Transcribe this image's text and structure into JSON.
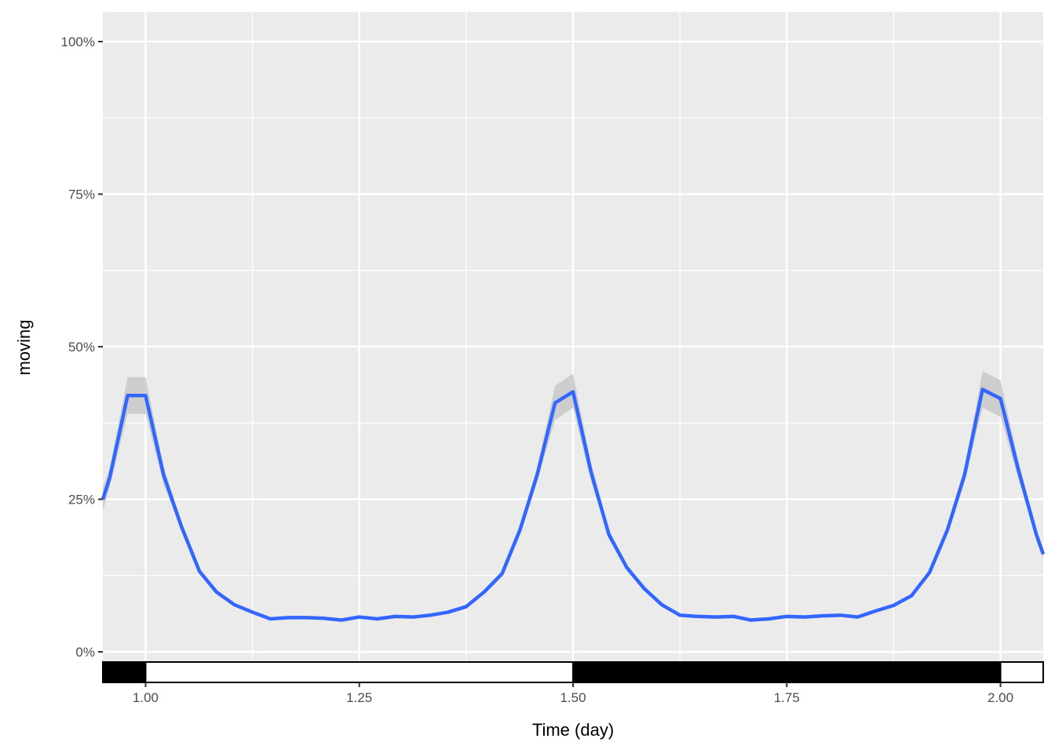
{
  "chart_data": {
    "type": "line",
    "title": "",
    "xlabel": "Time (day)",
    "ylabel": "moving",
    "xlim": [
      0.95,
      2.05
    ],
    "ylim": [
      0,
      1.05
    ],
    "x_ticks": [
      1.0,
      1.25,
      1.5,
      1.75,
      2.0
    ],
    "x_tick_labels": [
      "1.00",
      "1.25",
      "1.50",
      "1.75",
      "2.00"
    ],
    "y_ticks": [
      0,
      0.25,
      0.5,
      0.75,
      1.0
    ],
    "y_tick_labels": [
      "0%",
      "25%",
      "50%",
      "75%",
      "100%"
    ],
    "grid": true,
    "panel_background": "#ebebeb",
    "line_color": "#3366ff",
    "ribbon_color": "#c8c8c8",
    "series": [
      {
        "x": [
          0.95,
          0.958,
          0.979,
          1.0,
          1.021,
          1.042,
          1.063,
          1.083,
          1.104,
          1.125,
          1.146,
          1.167,
          1.188,
          1.208,
          1.229,
          1.25,
          1.271,
          1.292,
          1.313,
          1.333,
          1.354,
          1.375,
          1.396,
          1.417,
          1.438,
          1.458,
          1.479,
          1.5,
          1.521,
          1.542,
          1.563,
          1.583,
          1.604,
          1.625,
          1.646,
          1.667,
          1.688,
          1.708,
          1.729,
          1.75,
          1.771,
          1.792,
          1.813,
          1.833,
          1.854,
          1.875,
          1.896,
          1.917,
          1.938,
          1.958,
          1.979,
          2.0,
          2.021,
          2.042,
          2.05
        ],
        "y": [
          0.25,
          0.285,
          0.42,
          0.42,
          0.29,
          0.205,
          0.132,
          0.098,
          0.077,
          0.065,
          0.054,
          0.056,
          0.056,
          0.055,
          0.052,
          0.057,
          0.054,
          0.058,
          0.057,
          0.06,
          0.065,
          0.074,
          0.098,
          0.128,
          0.2,
          0.29,
          0.408,
          0.426,
          0.295,
          0.192,
          0.138,
          0.104,
          0.077,
          0.06,
          0.058,
          0.057,
          0.058,
          0.052,
          0.054,
          0.058,
          0.057,
          0.059,
          0.06,
          0.057,
          0.067,
          0.076,
          0.092,
          0.13,
          0.2,
          0.29,
          0.43,
          0.415,
          0.298,
          0.192,
          0.16
        ],
        "lower": [
          0.23,
          0.27,
          0.39,
          0.39,
          0.275,
          0.198,
          0.128,
          0.095,
          0.075,
          0.063,
          0.052,
          0.054,
          0.054,
          0.053,
          0.05,
          0.055,
          0.052,
          0.056,
          0.055,
          0.058,
          0.063,
          0.072,
          0.095,
          0.124,
          0.193,
          0.278,
          0.38,
          0.4,
          0.28,
          0.185,
          0.133,
          0.1,
          0.075,
          0.058,
          0.056,
          0.055,
          0.056,
          0.05,
          0.052,
          0.056,
          0.055,
          0.057,
          0.058,
          0.055,
          0.065,
          0.074,
          0.089,
          0.126,
          0.193,
          0.278,
          0.4,
          0.385,
          0.283,
          0.185,
          0.153
        ],
        "upper": [
          0.27,
          0.3,
          0.45,
          0.45,
          0.305,
          0.212,
          0.136,
          0.101,
          0.079,
          0.067,
          0.056,
          0.058,
          0.058,
          0.057,
          0.054,
          0.059,
          0.056,
          0.06,
          0.059,
          0.062,
          0.067,
          0.076,
          0.101,
          0.132,
          0.207,
          0.302,
          0.436,
          0.456,
          0.31,
          0.199,
          0.143,
          0.108,
          0.079,
          0.062,
          0.06,
          0.059,
          0.06,
          0.054,
          0.056,
          0.06,
          0.059,
          0.061,
          0.062,
          0.059,
          0.069,
          0.078,
          0.095,
          0.134,
          0.207,
          0.302,
          0.46,
          0.445,
          0.313,
          0.199,
          0.167
        ]
      }
    ],
    "light_dark_bar": [
      {
        "start": 0.95,
        "end": 1.0,
        "phase": "dark"
      },
      {
        "start": 1.0,
        "end": 1.5,
        "phase": "light"
      },
      {
        "start": 1.5,
        "end": 2.0,
        "phase": "dark"
      },
      {
        "start": 2.0,
        "end": 2.05,
        "phase": "light"
      }
    ]
  }
}
